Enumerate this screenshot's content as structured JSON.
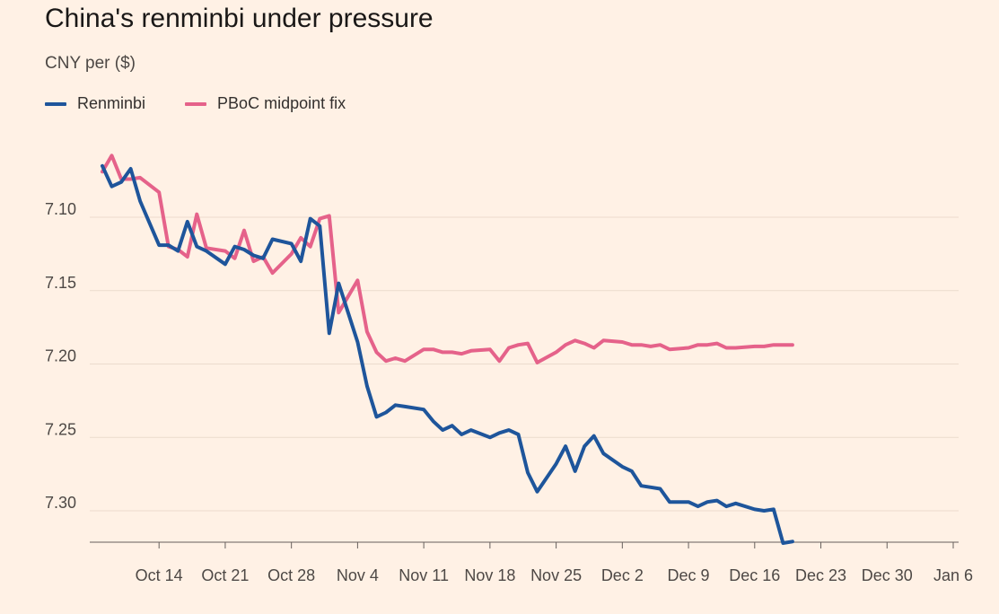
{
  "header": {
    "title": "China's renminbi under pressure",
    "subtitle": "CNY per ($)"
  },
  "colors": {
    "background": "#fff1e5",
    "renminbi": "#1e559b",
    "pboc": "#e5628a",
    "grid": "#ecdccd",
    "axis": "#66605c"
  },
  "chart_data": {
    "type": "line",
    "title": "China's renminbi under pressure",
    "ylabel": "CNY per ($)",
    "xlabel": "",
    "x_ticks": [
      "Oct 14",
      "Oct 21",
      "Oct 28",
      "Nov 4",
      "Nov 11",
      "Nov 18",
      "Nov 25",
      "Dec 2",
      "Dec 9",
      "Dec 16",
      "Dec 23",
      "Dec 30",
      "Jan 6"
    ],
    "x_tick_dates": [
      "2024-10-14",
      "2024-10-21",
      "2024-10-28",
      "2024-11-04",
      "2024-11-11",
      "2024-11-18",
      "2024-11-25",
      "2024-12-02",
      "2024-12-09",
      "2024-12-16",
      "2024-12-23",
      "2024-12-30",
      "2025-01-06"
    ],
    "y_ticks": [
      7.1,
      7.15,
      7.2,
      7.25,
      7.3
    ],
    "ylim": [
      7.05,
      7.325
    ],
    "xlim": [
      "2024-10-08",
      "2025-01-06"
    ],
    "y_inverted": true,
    "grid": "horizontal",
    "legend_position": "top-left",
    "series": [
      {
        "name": "Renminbi",
        "points": [
          [
            "2024-10-08",
            7.065
          ],
          [
            "2024-10-09",
            7.079
          ],
          [
            "2024-10-10",
            7.076
          ],
          [
            "2024-10-11",
            7.067
          ],
          [
            "2024-10-12",
            7.089
          ],
          [
            "2024-10-14",
            7.119
          ],
          [
            "2024-10-15",
            7.119
          ],
          [
            "2024-10-16",
            7.123
          ],
          [
            "2024-10-17",
            7.103
          ],
          [
            "2024-10-18",
            7.12
          ],
          [
            "2024-10-19",
            7.123
          ],
          [
            "2024-10-21",
            7.132
          ],
          [
            "2024-10-22",
            7.12
          ],
          [
            "2024-10-23",
            7.122
          ],
          [
            "2024-10-24",
            7.126
          ],
          [
            "2024-10-25",
            7.128
          ],
          [
            "2024-10-26",
            7.115
          ],
          [
            "2024-10-28",
            7.118
          ],
          [
            "2024-10-29",
            7.13
          ],
          [
            "2024-10-30",
            7.101
          ],
          [
            "2024-10-31",
            7.106
          ],
          [
            "2024-11-01",
            7.179
          ],
          [
            "2024-11-02",
            7.145
          ],
          [
            "2024-11-04",
            7.185
          ],
          [
            "2024-11-05",
            7.215
          ],
          [
            "2024-11-06",
            7.236
          ],
          [
            "2024-11-07",
            7.233
          ],
          [
            "2024-11-08",
            7.228
          ],
          [
            "2024-11-09",
            7.229
          ],
          [
            "2024-11-11",
            7.231
          ],
          [
            "2024-11-12",
            7.239
          ],
          [
            "2024-11-13",
            7.245
          ],
          [
            "2024-11-14",
            7.242
          ],
          [
            "2024-11-15",
            7.248
          ],
          [
            "2024-11-16",
            7.245
          ],
          [
            "2024-11-18",
            7.25
          ],
          [
            "2024-11-19",
            7.247
          ],
          [
            "2024-11-20",
            7.245
          ],
          [
            "2024-11-21",
            7.248
          ],
          [
            "2024-11-22",
            7.274
          ],
          [
            "2024-11-23",
            7.287
          ],
          [
            "2024-11-25",
            7.268
          ],
          [
            "2024-11-26",
            7.256
          ],
          [
            "2024-11-27",
            7.273
          ],
          [
            "2024-11-28",
            7.256
          ],
          [
            "2024-11-29",
            7.249
          ],
          [
            "2024-11-30",
            7.261
          ],
          [
            "2024-12-02",
            7.27
          ],
          [
            "2024-12-03",
            7.273
          ],
          [
            "2024-12-04",
            7.283
          ],
          [
            "2024-12-05",
            7.284
          ],
          [
            "2024-12-06",
            7.285
          ],
          [
            "2024-12-07",
            7.294
          ],
          [
            "2024-12-09",
            7.294
          ],
          [
            "2024-12-10",
            7.297
          ],
          [
            "2024-12-11",
            7.294
          ],
          [
            "2024-12-12",
            7.293
          ],
          [
            "2024-12-13",
            7.297
          ],
          [
            "2024-12-14",
            7.295
          ],
          [
            "2024-12-16",
            7.299
          ],
          [
            "2024-12-17",
            7.3
          ],
          [
            "2024-12-18",
            7.299
          ],
          [
            "2024-12-19",
            7.322
          ],
          [
            "2024-12-20",
            7.321
          ]
        ]
      },
      {
        "name": "PBoC midpoint fix",
        "points": [
          [
            "2024-10-08",
            7.069
          ],
          [
            "2024-10-09",
            7.058
          ],
          [
            "2024-10-10",
            7.074
          ],
          [
            "2024-10-11",
            7.074
          ],
          [
            "2024-10-12",
            7.073
          ],
          [
            "2024-10-14",
            7.083
          ],
          [
            "2024-10-15",
            7.12
          ],
          [
            "2024-10-16",
            7.122
          ],
          [
            "2024-10-17",
            7.127
          ],
          [
            "2024-10-18",
            7.098
          ],
          [
            "2024-10-19",
            7.121
          ],
          [
            "2024-10-21",
            7.123
          ],
          [
            "2024-10-22",
            7.128
          ],
          [
            "2024-10-23",
            7.109
          ],
          [
            "2024-10-24",
            7.13
          ],
          [
            "2024-10-25",
            7.127
          ],
          [
            "2024-10-26",
            7.138
          ],
          [
            "2024-10-28",
            7.125
          ],
          [
            "2024-10-29",
            7.114
          ],
          [
            "2024-10-30",
            7.12
          ],
          [
            "2024-10-31",
            7.101
          ],
          [
            "2024-11-01",
            7.099
          ],
          [
            "2024-11-02",
            7.165
          ],
          [
            "2024-11-04",
            7.143
          ],
          [
            "2024-11-05",
            7.178
          ],
          [
            "2024-11-06",
            7.192
          ],
          [
            "2024-11-07",
            7.198
          ],
          [
            "2024-11-08",
            7.196
          ],
          [
            "2024-11-09",
            7.198
          ],
          [
            "2024-11-11",
            7.19
          ],
          [
            "2024-11-12",
            7.19
          ],
          [
            "2024-11-13",
            7.192
          ],
          [
            "2024-11-14",
            7.192
          ],
          [
            "2024-11-15",
            7.193
          ],
          [
            "2024-11-16",
            7.191
          ],
          [
            "2024-11-18",
            7.19
          ],
          [
            "2024-11-19",
            7.198
          ],
          [
            "2024-11-20",
            7.189
          ],
          [
            "2024-11-21",
            7.187
          ],
          [
            "2024-11-22",
            7.186
          ],
          [
            "2024-11-23",
            7.199
          ],
          [
            "2024-11-25",
            7.192
          ],
          [
            "2024-11-26",
            7.187
          ],
          [
            "2024-11-27",
            7.184
          ],
          [
            "2024-11-28",
            7.186
          ],
          [
            "2024-11-29",
            7.189
          ],
          [
            "2024-11-30",
            7.184
          ],
          [
            "2024-12-02",
            7.185
          ],
          [
            "2024-12-03",
            7.187
          ],
          [
            "2024-12-04",
            7.187
          ],
          [
            "2024-12-05",
            7.188
          ],
          [
            "2024-12-06",
            7.187
          ],
          [
            "2024-12-07",
            7.19
          ],
          [
            "2024-12-09",
            7.189
          ],
          [
            "2024-12-10",
            7.187
          ],
          [
            "2024-12-11",
            7.187
          ],
          [
            "2024-12-12",
            7.186
          ],
          [
            "2024-12-13",
            7.189
          ],
          [
            "2024-12-14",
            7.189
          ],
          [
            "2024-12-16",
            7.188
          ],
          [
            "2024-12-17",
            7.188
          ],
          [
            "2024-12-18",
            7.187
          ],
          [
            "2024-12-19",
            7.187
          ],
          [
            "2024-12-20",
            7.187
          ]
        ]
      }
    ]
  }
}
